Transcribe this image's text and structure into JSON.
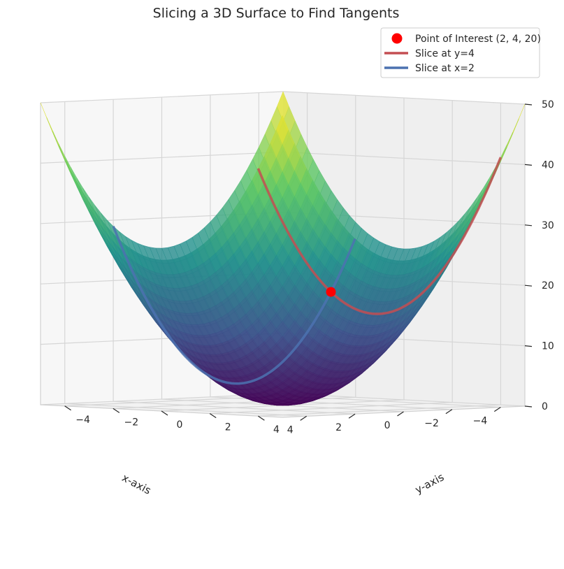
{
  "chart_data": {
    "type": "surface3d",
    "title": "Slicing a 3D Surface to Find Tangents",
    "function": "z = x^2 + y^2",
    "x_range": [
      -5,
      5
    ],
    "y_range": [
      -5,
      5
    ],
    "z_range": [
      0,
      50
    ],
    "colormap": "viridis",
    "xlabel": "x-axis",
    "ylabel": "y-axis",
    "zlabel": "",
    "x_ticks": [
      "4",
      "2",
      "0",
      "−2",
      "−4"
    ],
    "y_ticks": [
      "−4",
      "−2",
      "0",
      "2",
      "4"
    ],
    "z_ticks": [
      "0",
      "10",
      "20",
      "30",
      "40",
      "50"
    ],
    "grid": true,
    "legend_position": "top-right",
    "point": {
      "x": 2,
      "y": 4,
      "z": 20,
      "label": "Point of Interest (2, 4, 20)",
      "color": "#ff0000"
    },
    "slices": [
      {
        "label": "Slice at y=4",
        "fixed": "y",
        "value": 4,
        "color": "#c44e52"
      },
      {
        "label": "Slice at x=2",
        "fixed": "x",
        "value": 2,
        "color": "#4c72b0"
      }
    ]
  }
}
